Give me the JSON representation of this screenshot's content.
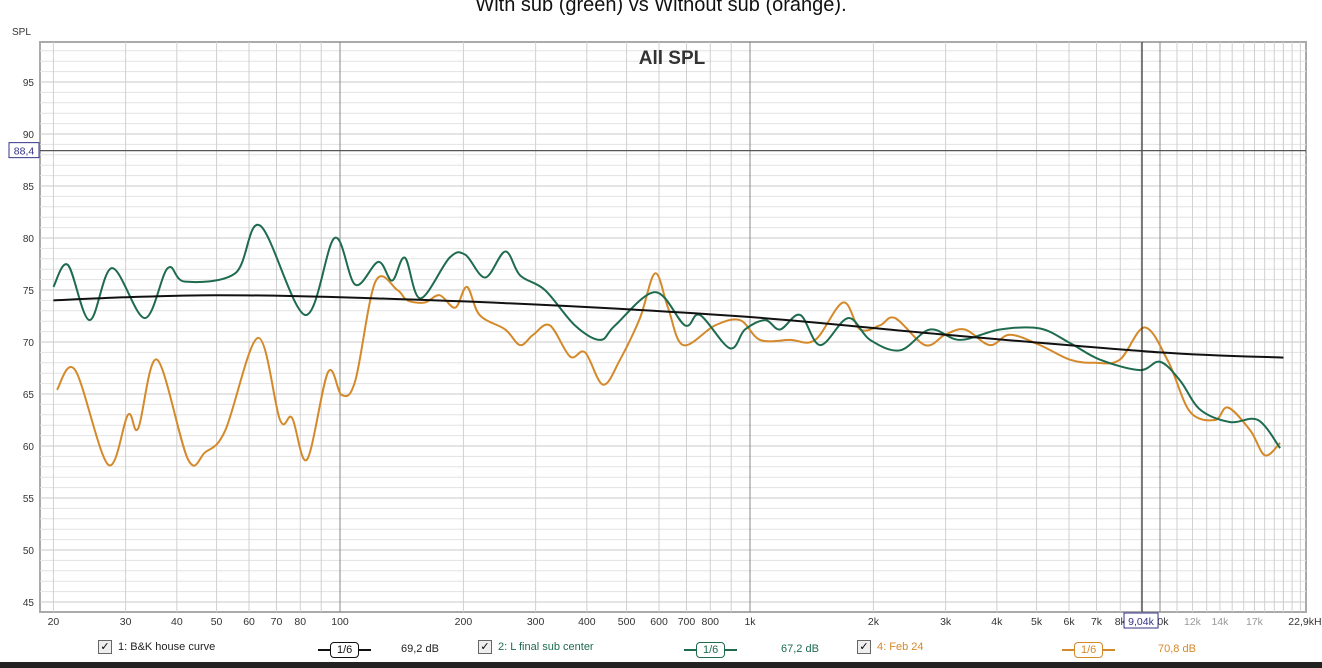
{
  "page_title": "With sub (green) vs Without sub (orange).",
  "chart_data": {
    "type": "line",
    "title": "All SPL",
    "ylabel": "SPL",
    "xscale": "log",
    "xlim": [
      20,
      22900
    ],
    "ylim": [
      44,
      98.8
    ],
    "yticks": [
      45,
      50,
      55,
      60,
      65,
      70,
      75,
      80,
      85,
      90,
      95
    ],
    "xticks": [
      {
        "v": 20,
        "l": "20"
      },
      {
        "v": 30,
        "l": "30"
      },
      {
        "v": 40,
        "l": "40"
      },
      {
        "v": 50,
        "l": "50"
      },
      {
        "v": 60,
        "l": "60"
      },
      {
        "v": 70,
        "l": "70"
      },
      {
        "v": 80,
        "l": "80"
      },
      {
        "v": 100,
        "l": "100"
      },
      {
        "v": 200,
        "l": "200"
      },
      {
        "v": 300,
        "l": "300"
      },
      {
        "v": 400,
        "l": "400"
      },
      {
        "v": 500,
        "l": "500"
      },
      {
        "v": 600,
        "l": "600"
      },
      {
        "v": 700,
        "l": "700"
      },
      {
        "v": 800,
        "l": "800"
      },
      {
        "v": 1000,
        "l": "1k"
      },
      {
        "v": 2000,
        "l": "2k"
      },
      {
        "v": 3000,
        "l": "3k"
      },
      {
        "v": 4000,
        "l": "4k"
      },
      {
        "v": 5000,
        "l": "5k"
      },
      {
        "v": 6000,
        "l": "6k"
      },
      {
        "v": 7000,
        "l": "7k"
      },
      {
        "v": 8000,
        "l": "8k"
      },
      {
        "v": 10000,
        "l": "10k"
      },
      {
        "v": 12000,
        "l": "12k"
      },
      {
        "v": 14000,
        "l": "14k"
      },
      {
        "v": 17000,
        "l": "17k"
      },
      {
        "v": 22900,
        "l": "22,9kHz"
      }
    ],
    "cursor": {
      "x": 9040,
      "x_label": "9,04k",
      "y": 88.4,
      "y_label": "88,4"
    },
    "grid": true,
    "series": [
      {
        "name": "1: B&K house curve",
        "color": "#111111",
        "smoothing": "1/6",
        "value": "69,2 dB",
        "x": [
          20,
          30,
          50,
          100,
          300,
          1000,
          3000,
          10000,
          20000
        ],
        "y": [
          74,
          74.3,
          74.5,
          74.3,
          73.6,
          72.4,
          70.7,
          69,
          68.5
        ]
      },
      {
        "name": "2: L final  sub center",
        "color": "#1e6b4e",
        "smoothing": "1/6",
        "value": "67,2 dB",
        "x": [
          20,
          21.7,
          24.5,
          27.8,
          33.4,
          38,
          41.9,
          55.5,
          63.8,
          82.3,
          97,
          109,
          124,
          134,
          144,
          157,
          185,
          202,
          226,
          253,
          275,
          316,
          374,
          431,
          469,
          587,
          694,
          755,
          893,
          972,
          1089,
          1184,
          1325,
          1483,
          1735,
          1963,
          2323,
          2748,
          3251,
          4070,
          5096,
          6030,
          7140,
          8930,
          10000,
          11190,
          12530,
          14830,
          17340,
          19630
        ],
        "y": [
          75.3,
          77.4,
          72.1,
          77.1,
          72.3,
          77.1,
          75.8,
          76.6,
          81.2,
          72.6,
          80,
          75.5,
          77.7,
          75.9,
          78.1,
          74.2,
          78.1,
          78.4,
          76.2,
          78.7,
          76.4,
          75,
          71.6,
          70.2,
          71.6,
          74.8,
          71.6,
          72.6,
          69.4,
          71.2,
          72.1,
          71.2,
          72.6,
          69.7,
          72.3,
          70.2,
          69.2,
          71.2,
          70.2,
          71.2,
          71.3,
          69.9,
          68.3,
          67.3,
          68.1,
          66.3,
          63.5,
          62.3,
          62.5,
          59.8
        ]
      },
      {
        "name": "4: Feb 24",
        "color": "#d4892a",
        "smoothing": "1/6",
        "value": "70,8 dB",
        "x": [
          20.4,
          22.6,
          27.2,
          30.4,
          32.2,
          35.8,
          42.6,
          46.9,
          52.5,
          63.1,
          71.4,
          76.4,
          83.1,
          93.5,
          101,
          109,
          122,
          138,
          146,
          161,
          175,
          191,
          204,
          219,
          253,
          275,
          296,
          325,
          364,
          396,
          438,
          482,
          539,
          587,
          631,
          687,
          822,
          946,
          1058,
          1252,
          1442,
          1687,
          1855,
          2075,
          2259,
          2673,
          2992,
          3344,
          3846,
          4305,
          5096,
          6030,
          6934,
          7980,
          9180,
          10480,
          11830,
          13620,
          14650,
          16600,
          18030,
          19630
        ],
        "y": [
          65.4,
          67.3,
          58.2,
          63,
          61.7,
          68.3,
          58.7,
          59.4,
          61.5,
          70.4,
          62.5,
          62.7,
          58.7,
          67.1,
          64.9,
          66.3,
          75.8,
          75,
          74,
          73.8,
          74.5,
          73.3,
          75.3,
          72.6,
          71.2,
          69.7,
          70.7,
          71.6,
          68.6,
          69,
          65.9,
          68.3,
          72.3,
          76.6,
          73.3,
          69.7,
          71.6,
          72.1,
          70.2,
          70.2,
          70.2,
          73.8,
          71.2,
          71.6,
          72.3,
          69.7,
          70.7,
          71.2,
          69.7,
          70.7,
          69.7,
          68.3,
          68,
          68.3,
          71.4,
          68.1,
          63.3,
          62.5,
          63.7,
          61.5,
          59.1,
          60.3
        ]
      }
    ]
  },
  "legend": [
    {
      "label": "1: B&K house curve",
      "smoothing": "1/6",
      "value": "69,2 dB",
      "checked": "✓"
    },
    {
      "label": "2: L final  sub center",
      "smoothing": "1/6",
      "value": "67,2 dB",
      "checked": "✓"
    },
    {
      "label": "4: Feb 24",
      "smoothing": "1/6",
      "value": "70,8 dB",
      "checked": "✓"
    }
  ]
}
